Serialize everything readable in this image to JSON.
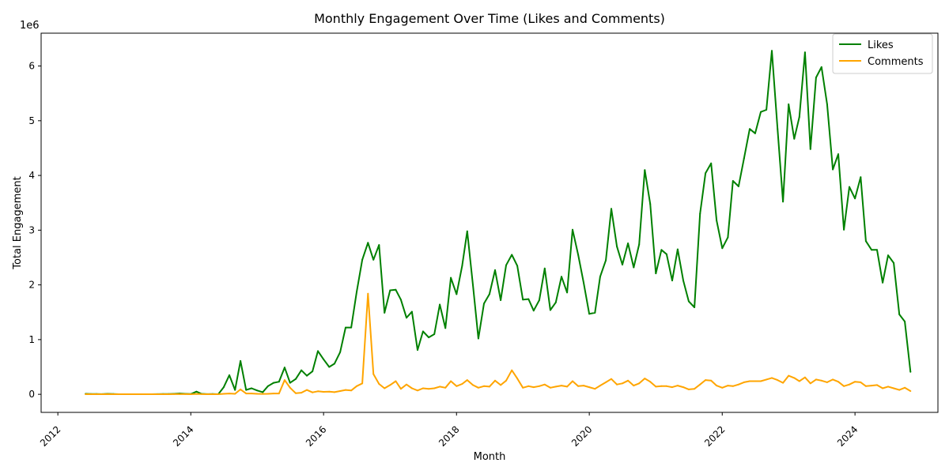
{
  "chart_data": {
    "type": "line",
    "title": "Monthly Engagement Over Time (Likes and Comments)",
    "xlabel": "Month",
    "ylabel": "Total Engagement",
    "y_offset_label": "1e6",
    "xlim": [
      "2011-10-01",
      "2025-04-01"
    ],
    "ylim": [
      -330000,
      6600000
    ],
    "x_tick_labels": [
      "2012",
      "2014",
      "2016",
      "2018",
      "2020",
      "2022",
      "2024"
    ],
    "y_tick_values": [
      0,
      1000000,
      2000000,
      3000000,
      4000000,
      5000000,
      6000000
    ],
    "y_tick_labels": [
      "0",
      "1",
      "2",
      "3",
      "4",
      "5",
      "6"
    ],
    "grid": false,
    "legend_position": "top-right",
    "x": [
      "2012-06",
      "2012-07",
      "2012-08",
      "2012-09",
      "2012-10",
      "2012-11",
      "2012-12",
      "2013-01",
      "2013-02",
      "2013-03",
      "2013-04",
      "2013-05",
      "2013-06",
      "2013-07",
      "2013-08",
      "2013-09",
      "2013-10",
      "2013-11",
      "2013-12",
      "2014-01",
      "2014-02",
      "2014-03",
      "2014-04",
      "2014-05",
      "2014-06",
      "2014-07",
      "2014-08",
      "2014-09",
      "2014-10",
      "2014-11",
      "2014-12",
      "2015-01",
      "2015-02",
      "2015-03",
      "2015-04",
      "2015-05",
      "2015-06",
      "2015-07",
      "2015-08",
      "2015-09",
      "2015-10",
      "2015-11",
      "2015-12",
      "2016-01",
      "2016-02",
      "2016-03",
      "2016-04",
      "2016-05",
      "2016-06",
      "2016-07",
      "2016-08",
      "2016-09",
      "2016-10",
      "2016-11",
      "2016-12",
      "2017-01",
      "2017-02",
      "2017-03",
      "2017-04",
      "2017-05",
      "2017-06",
      "2017-07",
      "2017-08",
      "2017-09",
      "2017-10",
      "2017-11",
      "2017-12",
      "2018-01",
      "2018-02",
      "2018-03",
      "2018-04",
      "2018-05",
      "2018-06",
      "2018-07",
      "2018-08",
      "2018-09",
      "2018-10",
      "2018-11",
      "2018-12",
      "2019-01",
      "2019-02",
      "2019-03",
      "2019-04",
      "2019-05",
      "2019-06",
      "2019-07",
      "2019-08",
      "2019-09",
      "2019-10",
      "2019-11",
      "2019-12",
      "2020-01",
      "2020-02",
      "2020-03",
      "2020-04",
      "2020-05",
      "2020-06",
      "2020-07",
      "2020-08",
      "2020-09",
      "2020-10",
      "2020-11",
      "2020-12",
      "2021-01",
      "2021-02",
      "2021-03",
      "2021-04",
      "2021-05",
      "2021-06",
      "2021-07",
      "2021-08",
      "2021-09",
      "2021-10",
      "2021-11",
      "2021-12",
      "2022-01",
      "2022-02",
      "2022-03",
      "2022-04",
      "2022-05",
      "2022-06",
      "2022-07",
      "2022-08",
      "2022-09",
      "2022-10",
      "2022-11",
      "2022-12",
      "2023-01",
      "2023-02",
      "2023-03",
      "2023-04",
      "2023-05",
      "2023-06",
      "2023-07",
      "2023-08",
      "2023-09",
      "2023-10",
      "2023-11",
      "2023-12",
      "2024-01",
      "2024-02",
      "2024-03",
      "2024-04",
      "2024-05",
      "2024-06",
      "2024-07",
      "2024-08",
      "2024-09",
      "2024-10",
      "2024-11"
    ],
    "series": [
      {
        "name": "Likes",
        "color": "#008000",
        "values": [
          10000,
          5000,
          5000,
          3000,
          10000,
          5000,
          2000,
          2000,
          2000,
          2000,
          2000,
          2000,
          2000,
          3000,
          5000,
          5000,
          10000,
          15000,
          10000,
          5000,
          50000,
          10000,
          3000,
          5000,
          2000,
          130000,
          350000,
          80000,
          610000,
          80000,
          110000,
          70000,
          40000,
          150000,
          210000,
          230000,
          490000,
          210000,
          280000,
          440000,
          340000,
          420000,
          790000,
          640000,
          500000,
          560000,
          770000,
          1220000,
          1220000,
          1870000,
          2460000,
          2770000,
          2460000,
          2730000,
          1490000,
          1900000,
          1910000,
          1730000,
          1400000,
          1510000,
          810000,
          1150000,
          1040000,
          1100000,
          1640000,
          1210000,
          2130000,
          1830000,
          2350000,
          2980000,
          2000000,
          1020000,
          1660000,
          1830000,
          2270000,
          1720000,
          2360000,
          2550000,
          2350000,
          1730000,
          1740000,
          1530000,
          1720000,
          2300000,
          1540000,
          1680000,
          2150000,
          1860000,
          3010000,
          2550000,
          2040000,
          1470000,
          1490000,
          2150000,
          2450000,
          3390000,
          2700000,
          2370000,
          2760000,
          2320000,
          2740000,
          4100000,
          3480000,
          2210000,
          2640000,
          2560000,
          2080000,
          2650000,
          2080000,
          1700000,
          1590000,
          3300000,
          4040000,
          4220000,
          3180000,
          2670000,
          2870000,
          3900000,
          3800000,
          4310000,
          4850000,
          4770000,
          5160000,
          5200000,
          6280000,
          4850000,
          3520000,
          5300000,
          4670000,
          5070000,
          6250000,
          4480000,
          5790000,
          5980000,
          5300000,
          4110000,
          4390000,
          3010000,
          3790000,
          3580000,
          3970000,
          2800000,
          2640000,
          2640000,
          2040000,
          2540000,
          2400000,
          1460000,
          1330000,
          410000
        ]
      },
      {
        "name": "Comments",
        "color": "#ffa500",
        "values": [
          2000,
          2000,
          2000,
          2000,
          3000,
          2000,
          2000,
          2000,
          2000,
          2000,
          2000,
          2000,
          2000,
          2000,
          2000,
          2000,
          3000,
          3000,
          3000,
          2000,
          8000,
          3000,
          2000,
          2000,
          2000,
          10000,
          15000,
          10000,
          90000,
          15000,
          15000,
          10000,
          8000,
          10000,
          15000,
          15000,
          260000,
          120000,
          20000,
          30000,
          80000,
          35000,
          55000,
          45000,
          50000,
          40000,
          60000,
          80000,
          70000,
          150000,
          200000,
          1840000,
          370000,
          190000,
          110000,
          170000,
          240000,
          100000,
          180000,
          110000,
          70000,
          110000,
          100000,
          110000,
          140000,
          120000,
          240000,
          150000,
          190000,
          260000,
          170000,
          120000,
          150000,
          140000,
          250000,
          170000,
          250000,
          440000,
          290000,
          120000,
          150000,
          130000,
          150000,
          180000,
          120000,
          140000,
          160000,
          140000,
          240000,
          150000,
          160000,
          130000,
          100000,
          160000,
          220000,
          280000,
          180000,
          200000,
          250000,
          160000,
          200000,
          290000,
          230000,
          140000,
          150000,
          150000,
          130000,
          160000,
          130000,
          90000,
          100000,
          180000,
          260000,
          250000,
          160000,
          120000,
          160000,
          150000,
          180000,
          220000,
          240000,
          240000,
          240000,
          270000,
          300000,
          260000,
          210000,
          340000,
          300000,
          240000,
          310000,
          200000,
          270000,
          250000,
          220000,
          270000,
          230000,
          150000,
          180000,
          230000,
          220000,
          150000,
          160000,
          170000,
          110000,
          140000,
          110000,
          80000,
          120000,
          60000
        ]
      }
    ]
  }
}
